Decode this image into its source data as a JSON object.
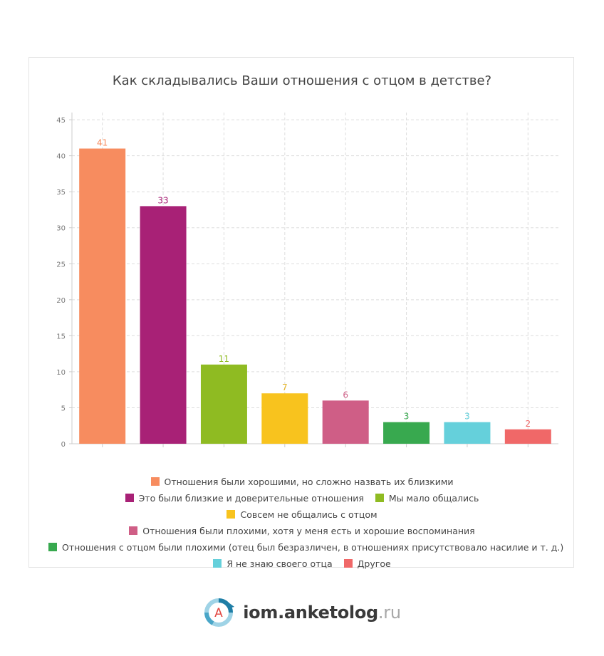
{
  "chart_data": {
    "type": "bar",
    "title": "Как складывались Ваши отношения с отцом в детстве?",
    "categories": [
      "Отношения были хорошими, но сложно назвать их близкими",
      "Это были близкие и доверительные отношения",
      "Мы мало общались",
      "Совсем не общались с отцом",
      "Отношения были плохими, хотя у меня есть и хорошие воспоминания",
      "Отношения с отцом были плохими (отец был безразличен, в отношениях присутствовало насилие и т. д.)",
      "Я не знаю своего отца",
      "Другое"
    ],
    "values": [
      41,
      33,
      11,
      7,
      6,
      3,
      3,
      2
    ],
    "colors": [
      "#f78c5f",
      "#a82176",
      "#8fbb22",
      "#f8c31e",
      "#cf5e86",
      "#38a94f",
      "#65d0db",
      "#f06868"
    ],
    "value_label_colors": [
      "#f78c5f",
      "#a82176",
      "#8fbb22",
      "#e3b325",
      "#cf5e86",
      "#38a94f",
      "#65d0db",
      "#f06868"
    ],
    "yticks": [
      0,
      5,
      10,
      15,
      20,
      25,
      30,
      35,
      40,
      45
    ],
    "ylim": [
      0,
      46
    ],
    "grid": true,
    "legend_position": "bottom"
  },
  "legend_rows": [
    [
      0
    ],
    [
      1,
      2,
      3
    ],
    [
      4
    ],
    [
      5
    ],
    [
      6,
      7
    ]
  ],
  "footer": {
    "logo_icon": "anketolog-logo-icon",
    "logo_letter": "А",
    "logo_domain": "iom.anketolog",
    "logo_tld": ".ru"
  }
}
